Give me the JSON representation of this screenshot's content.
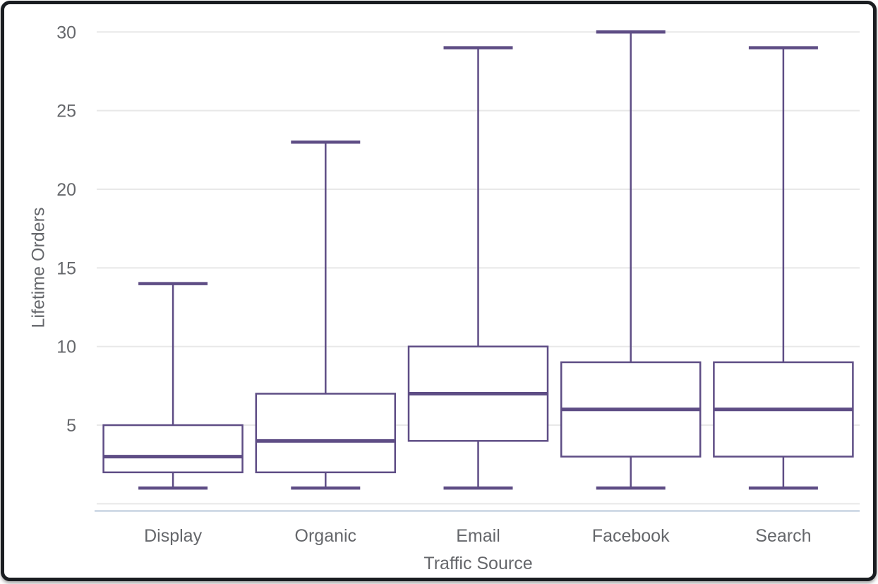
{
  "window": {
    "frame_color": "#1a1d21",
    "background_color": "#ffffff"
  },
  "chart_data": {
    "type": "box",
    "title": "",
    "xlabel": "Traffic Source",
    "ylabel": "Lifetime Orders",
    "categories": [
      "Display",
      "Organic",
      "Email",
      "Facebook",
      "Search"
    ],
    "series": [
      {
        "name": "Display",
        "min": 1,
        "q1": 2,
        "median": 3,
        "q3": 5,
        "max": 14
      },
      {
        "name": "Organic",
        "min": 1,
        "q1": 2,
        "median": 4,
        "q3": 7,
        "max": 23
      },
      {
        "name": "Email",
        "min": 1,
        "q1": 4,
        "median": 7,
        "q3": 10,
        "max": 29
      },
      {
        "name": "Facebook",
        "min": 1,
        "q1": 3,
        "median": 6,
        "q3": 9,
        "max": 30
      },
      {
        "name": "Search",
        "min": 1,
        "q1": 3,
        "median": 6,
        "q3": 9,
        "max": 29
      }
    ],
    "yticks": [
      5,
      10,
      15,
      20,
      25,
      30
    ],
    "ylim": [
      0,
      31
    ],
    "grid": true,
    "legend": "none",
    "colors": {
      "box_stroke": "#5e4d85",
      "box_fill": "#ffffff",
      "grid": "#e8e8e8",
      "axis_line": "#c7d3e2",
      "text": "#65676b"
    }
  }
}
